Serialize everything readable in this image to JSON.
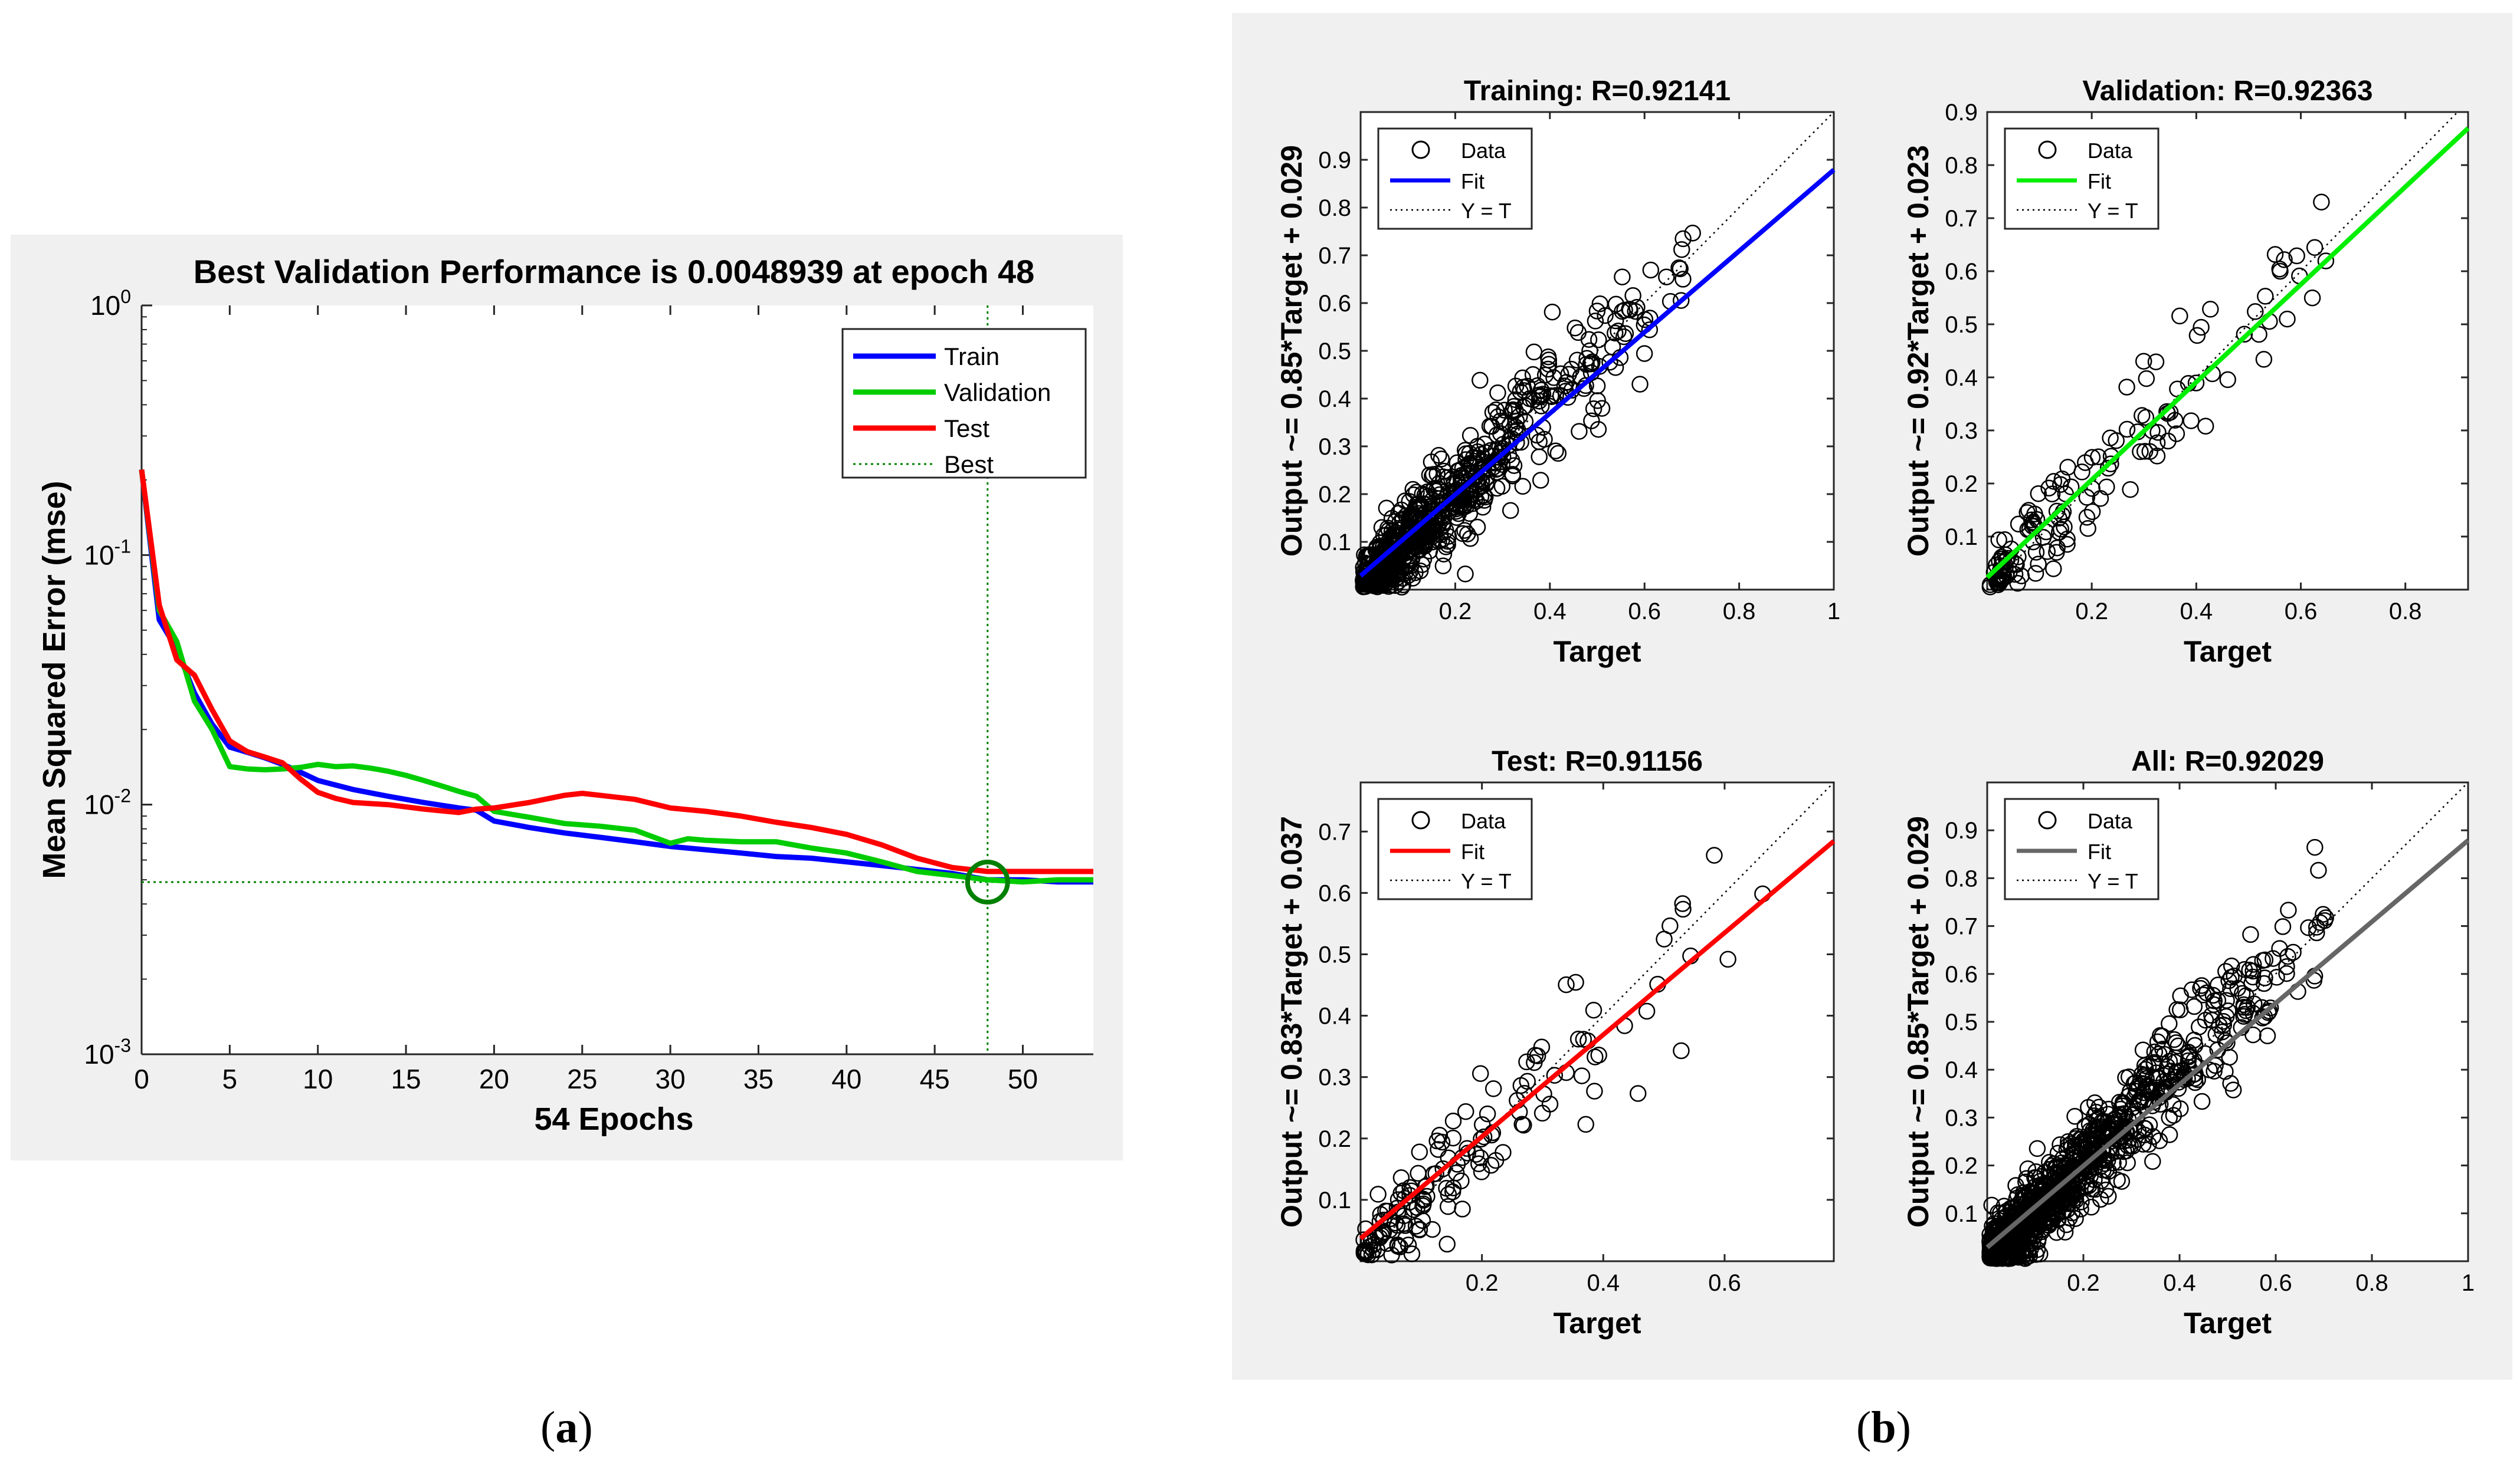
{
  "captions": {
    "a_open": "(",
    "a_letter": "a",
    "a_close": ")",
    "b_open": "(",
    "b_letter": "b",
    "b_close": ")"
  },
  "colors": {
    "train": "#0000ff",
    "validation": "#00cc00",
    "test": "#ff0000",
    "all": "#666666",
    "best": "#008000",
    "panel": "#f0f0f0"
  },
  "chart_data": [
    {
      "type": "line",
      "title": "Best Validation Performance is 0.0048939 at epoch 48",
      "xlabel": "54 Epochs",
      "ylabel": "Mean Squared Error  (mse)",
      "yscale": "log",
      "xlim": [
        0,
        54
      ],
      "ylim": [
        0.001,
        1
      ],
      "xticks": [
        0,
        5,
        10,
        15,
        20,
        25,
        30,
        35,
        40,
        45,
        50
      ],
      "yticks": [
        0.001,
        0.01,
        0.1,
        1
      ],
      "ytick_exps": [
        "-3",
        "-2",
        "-1",
        "0"
      ],
      "ytick_base": "10",
      "legend_position": "top-right",
      "best": {
        "epoch": 48,
        "value": 0.0048939,
        "name": "Best"
      },
      "series": [
        {
          "name": "Train",
          "color": "#0000ff",
          "x": [
            0,
            1,
            2,
            3,
            4,
            5,
            6,
            7,
            8,
            9,
            10,
            12,
            14,
            16,
            18,
            19,
            20,
            22,
            24,
            26,
            28,
            30,
            32,
            34,
            36,
            38,
            40,
            42,
            44,
            46,
            48,
            50,
            52,
            54
          ],
          "y": [
            0.22,
            0.055,
            0.042,
            0.028,
            0.021,
            0.017,
            0.0162,
            0.0154,
            0.0145,
            0.0135,
            0.0125,
            0.0115,
            0.0108,
            0.0102,
            0.0097,
            0.0095,
            0.0086,
            0.0081,
            0.0077,
            0.0074,
            0.0071,
            0.0068,
            0.0066,
            0.0064,
            0.0062,
            0.0061,
            0.0059,
            0.0057,
            0.0055,
            0.0053,
            0.005,
            0.005,
            0.0049,
            0.0049
          ]
        },
        {
          "name": "Validation",
          "color": "#00cc00",
          "x": [
            0,
            1,
            2,
            3,
            4,
            5,
            6,
            7,
            8,
            9,
            10,
            11,
            12,
            13,
            14,
            15,
            16,
            17,
            18,
            19,
            20,
            22,
            24,
            26,
            28,
            30,
            31,
            32,
            34,
            36,
            38,
            40,
            42,
            44,
            46,
            48,
            50,
            52,
            54
          ],
          "y": [
            0.22,
            0.06,
            0.045,
            0.026,
            0.02,
            0.0142,
            0.0139,
            0.0138,
            0.0139,
            0.0141,
            0.0145,
            0.0142,
            0.0143,
            0.014,
            0.0136,
            0.0131,
            0.0125,
            0.0119,
            0.0113,
            0.0108,
            0.0094,
            0.0089,
            0.0084,
            0.0082,
            0.0079,
            0.007,
            0.0073,
            0.0072,
            0.0071,
            0.0071,
            0.0067,
            0.0064,
            0.0059,
            0.0054,
            0.0052,
            0.005,
            0.0049,
            0.005,
            0.005
          ]
        },
        {
          "name": "Test",
          "color": "#ff0000",
          "x": [
            0,
            1,
            2,
            3,
            4,
            5,
            6,
            7,
            8,
            9,
            10,
            11,
            12,
            14,
            16,
            18,
            19,
            20,
            22,
            24,
            25,
            26,
            28,
            30,
            32,
            34,
            36,
            38,
            40,
            42,
            44,
            46,
            48,
            50,
            52,
            54
          ],
          "y": [
            0.22,
            0.063,
            0.038,
            0.033,
            0.024,
            0.018,
            0.0163,
            0.0155,
            0.0147,
            0.0127,
            0.0112,
            0.0106,
            0.0102,
            0.01,
            0.0096,
            0.0093,
            0.0096,
            0.0097,
            0.0102,
            0.0109,
            0.0111,
            0.0109,
            0.0105,
            0.0097,
            0.0094,
            0.009,
            0.0085,
            0.0081,
            0.0076,
            0.0069,
            0.0061,
            0.0056,
            0.0054,
            0.0054,
            0.0054,
            0.0054
          ]
        }
      ]
    },
    {
      "type": "scatter",
      "title": "Training: R=0.92141",
      "xlabel": "Target",
      "ylabel": "Output ~= 0.85*Target + 0.029",
      "xlim": [
        0,
        1
      ],
      "ylim": [
        0,
        1
      ],
      "xticks": [
        0.2,
        0.4,
        0.6,
        0.8,
        1
      ],
      "xtick_labels": [
        "0.2",
        "0.4",
        "0.6",
        "0.8",
        "1"
      ],
      "yticks": [
        0.1,
        0.2,
        0.3,
        0.4,
        0.5,
        0.6,
        0.7,
        0.8,
        0.9
      ],
      "ytick_labels": [
        "0.1",
        "0.2",
        "0.3",
        "0.4",
        "0.5",
        "0.6",
        "0.7",
        "0.8",
        "0.9"
      ],
      "fit": {
        "slope": 0.85,
        "intercept": 0.029,
        "color": "#0000ff"
      },
      "n_points": 700,
      "legend": [
        "Data",
        "Fit",
        "Y = T"
      ],
      "legend_position": "top-left"
    },
    {
      "type": "scatter",
      "title": "Validation: R=0.92363",
      "xlabel": "Target",
      "ylabel": "Output ~= 0.92*Target + 0.023",
      "xlim": [
        0,
        0.92
      ],
      "ylim": [
        0,
        0.9
      ],
      "xticks": [
        0.2,
        0.4,
        0.6,
        0.8
      ],
      "xtick_labels": [
        "0.2",
        "0.4",
        "0.6",
        "0.8"
      ],
      "yticks": [
        0.1,
        0.2,
        0.3,
        0.4,
        0.5,
        0.6,
        0.7,
        0.8,
        0.9
      ],
      "ytick_labels": [
        "0.1",
        "0.2",
        "0.3",
        "0.4",
        "0.5",
        "0.6",
        "0.7",
        "0.8",
        "0.9"
      ],
      "fit": {
        "slope": 0.92,
        "intercept": 0.023,
        "color": "#00ee00"
      },
      "n_points": 150,
      "legend": [
        "Data",
        "Fit",
        "Y = T"
      ],
      "legend_position": "top-left"
    },
    {
      "type": "scatter",
      "title": "Test: R=0.91156",
      "xlabel": "Target",
      "ylabel": "Output ~= 0.83*Target + 0.037",
      "xlim": [
        0,
        0.78
      ],
      "ylim": [
        0,
        0.78
      ],
      "xticks": [
        0.2,
        0.4,
        0.6
      ],
      "xtick_labels": [
        "0.2",
        "0.4",
        "0.6"
      ],
      "yticks": [
        0.1,
        0.2,
        0.3,
        0.4,
        0.5,
        0.6,
        0.7
      ],
      "ytick_labels": [
        "0.1",
        "0.2",
        "0.3",
        "0.4",
        "0.5",
        "0.6",
        "0.7"
      ],
      "fit": {
        "slope": 0.83,
        "intercept": 0.037,
        "color": "#ff0000"
      },
      "n_points": 150,
      "legend": [
        "Data",
        "Fit",
        "Y = T"
      ],
      "legend_position": "top-left"
    },
    {
      "type": "scatter",
      "title": "All: R=0.92029",
      "xlabel": "Target",
      "ylabel": "Output ~= 0.85*Target + 0.029",
      "xlim": [
        0,
        1
      ],
      "ylim": [
        0,
        1
      ],
      "xticks": [
        0.2,
        0.4,
        0.6,
        0.8,
        1
      ],
      "xtick_labels": [
        "0.2",
        "0.4",
        "0.6",
        "0.8",
        "1"
      ],
      "yticks": [
        0.1,
        0.2,
        0.3,
        0.4,
        0.5,
        0.6,
        0.7,
        0.8,
        0.9
      ],
      "ytick_labels": [
        "0.1",
        "0.2",
        "0.3",
        "0.4",
        "0.5",
        "0.6",
        "0.7",
        "0.8",
        "0.9"
      ],
      "fit": {
        "slope": 0.85,
        "intercept": 0.029,
        "color": "#666666"
      },
      "n_points": 1000,
      "legend": [
        "Data",
        "Fit",
        "Y = T"
      ],
      "legend_position": "top-left"
    }
  ]
}
